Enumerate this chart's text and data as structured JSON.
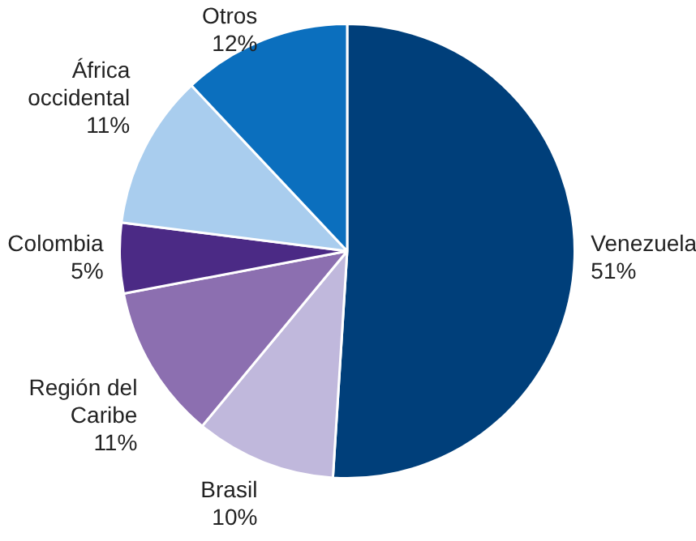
{
  "chart_data": {
    "type": "pie",
    "categories": [
      "Venezuela",
      "Brasil",
      "Región del Caribe",
      "Colombia",
      "África occidental",
      "Otros"
    ],
    "values": [
      51,
      10,
      11,
      5,
      11,
      12
    ],
    "value_labels": [
      "51%",
      "10%",
      "11%",
      "5%",
      "11%",
      "12%"
    ],
    "colors": [
      "#003f7a",
      "#c0b8dc",
      "#8c6fb0",
      "#4b2a85",
      "#a9cdee",
      "#0b6fbe"
    ],
    "legend": false
  }
}
